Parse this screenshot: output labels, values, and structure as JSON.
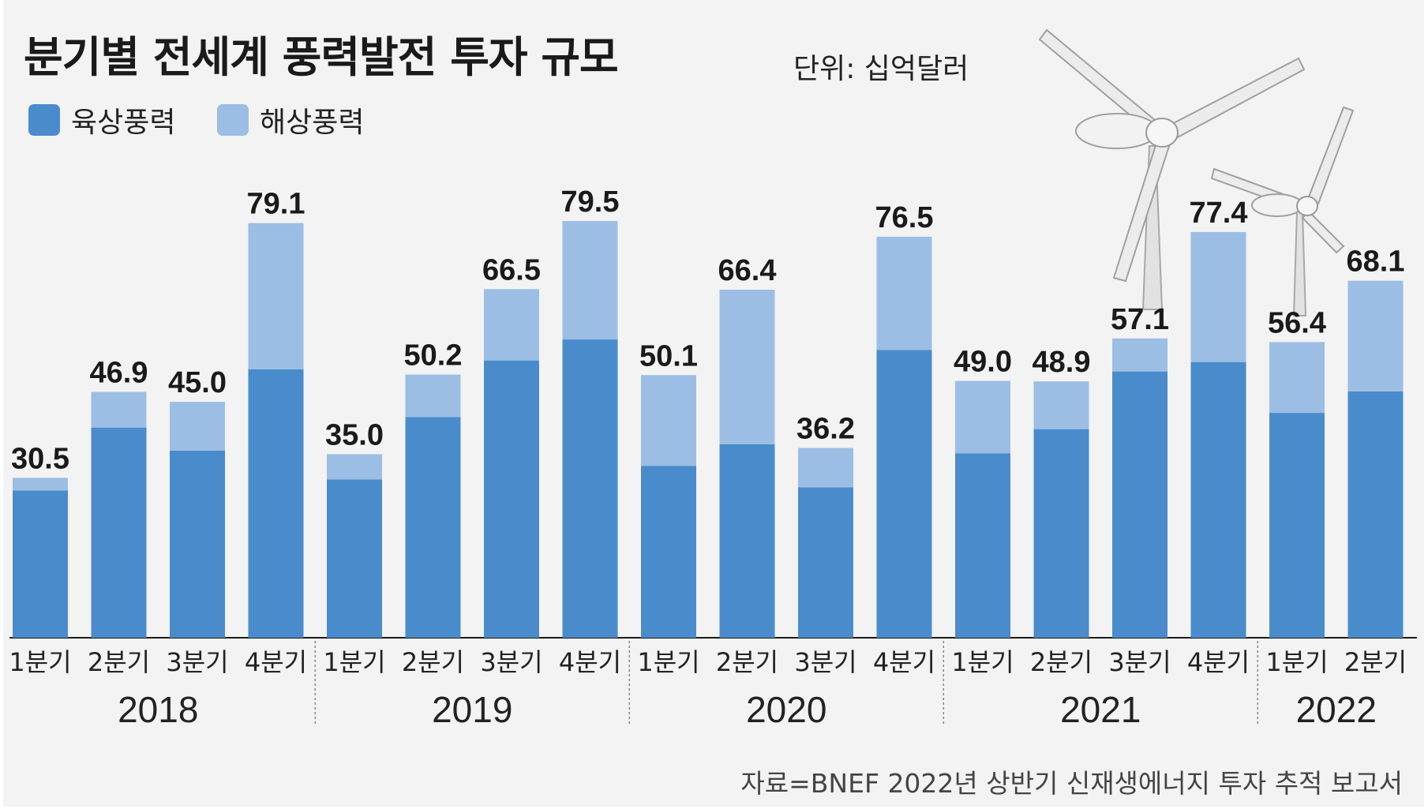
{
  "header": {
    "title": "분기별 전세계 풍력발전 투자 규모",
    "unit": "단위: 십억달러"
  },
  "legend": {
    "onshore": "육상풍력",
    "offshore": "해상풍력"
  },
  "colors": {
    "onshore": "#4a8ccb",
    "offshore": "#9cbee4",
    "background": "#f3f3f3"
  },
  "source": "자료=BNEF 2022년 상반기 신재생에너지 투자 추적 보고서",
  "chart_data": {
    "type": "bar",
    "stacked": true,
    "title": "분기별 전세계 풍력발전 투자 규모",
    "unit": "단위: 십억달러",
    "groups": [
      {
        "year": "2018",
        "quarters": [
          "1분기",
          "2분기",
          "3분기",
          "4분기"
        ]
      },
      {
        "year": "2019",
        "quarters": [
          "1분기",
          "2분기",
          "3분기",
          "4분기"
        ]
      },
      {
        "year": "2020",
        "quarters": [
          "1분기",
          "2분기",
          "3분기",
          "4분기"
        ]
      },
      {
        "year": "2021",
        "quarters": [
          "1분기",
          "2분기",
          "3분기",
          "4분기"
        ]
      },
      {
        "year": "2022",
        "quarters": [
          "1분기",
          "2분기"
        ]
      }
    ],
    "totals": [
      "30.5",
      "46.9",
      "45.0",
      "79.1",
      "35.0",
      "50.2",
      "66.5",
      "79.5",
      "50.1",
      "66.4",
      "36.2",
      "76.5",
      "49.0",
      "48.9",
      "57.1",
      "77.4",
      "56.4",
      "68.1"
    ],
    "series": [
      {
        "name": "육상풍력",
        "values": [
          28.1,
          40.1,
          35.7,
          51.2,
          30.2,
          42.1,
          52.9,
          56.9,
          32.8,
          36.9,
          28.7,
          54.9,
          35.2,
          39.8,
          50.8,
          52.6,
          42.9,
          47.0
        ]
      },
      {
        "name": "해상풍력",
        "values": [
          2.4,
          6.8,
          9.3,
          27.9,
          4.8,
          8.1,
          13.6,
          22.6,
          17.3,
          29.5,
          7.5,
          21.6,
          13.8,
          9.1,
          6.3,
          24.8,
          13.5,
          21.1
        ]
      }
    ],
    "ylim": [
      0,
      82
    ]
  }
}
